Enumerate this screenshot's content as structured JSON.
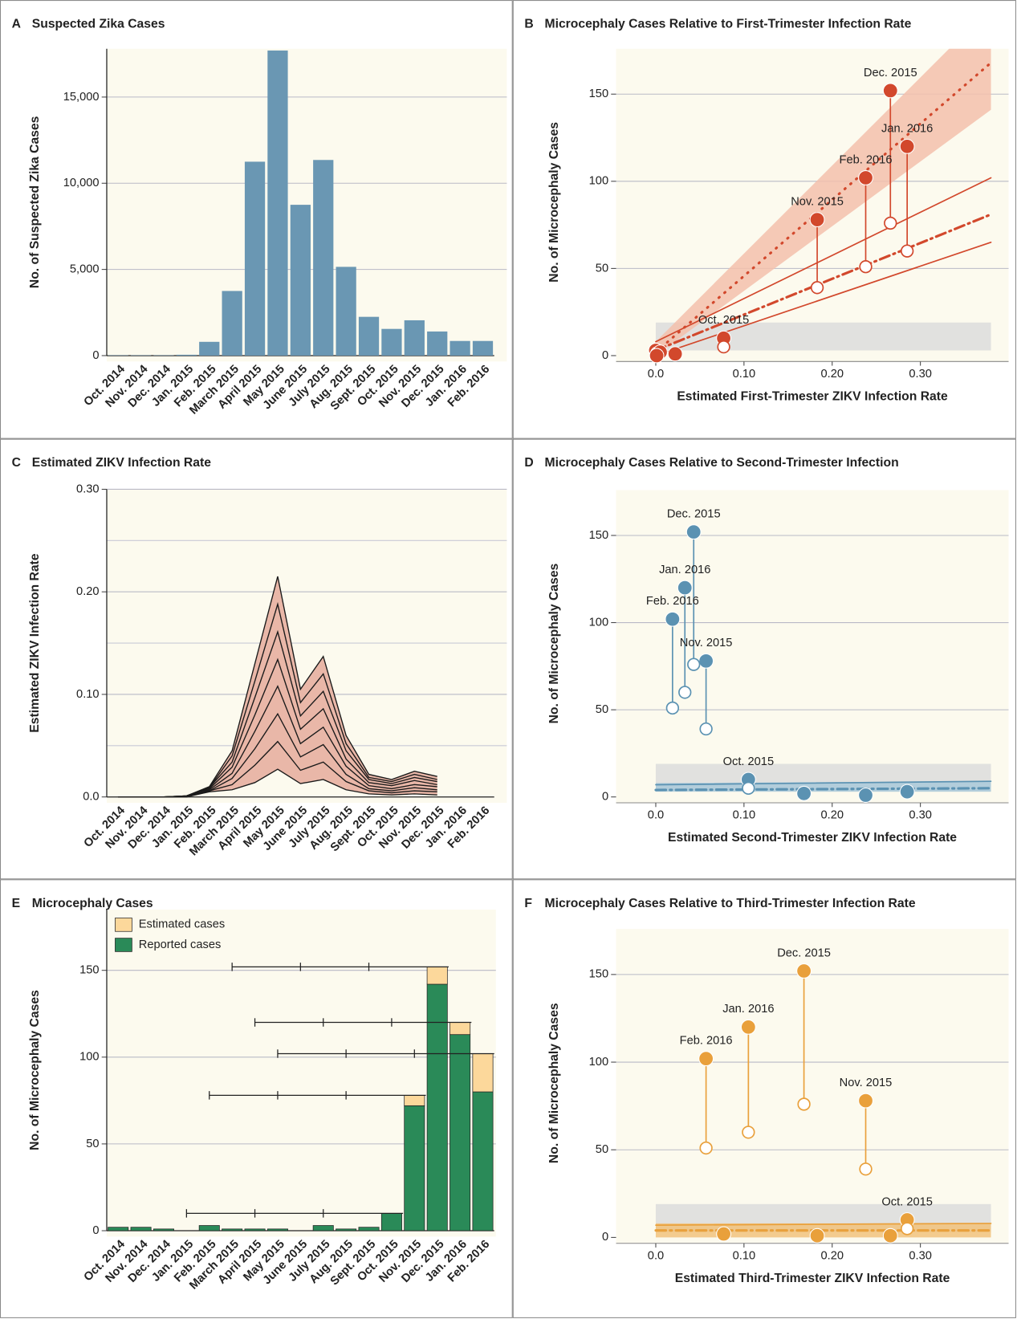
{
  "chart_data": [
    {
      "type": "bar",
      "panel": "A",
      "title": "Suspected Zika Cases",
      "y_label": "No. of Suspected Zika Cases",
      "categories": [
        "Oct. 2014",
        "Nov. 2014",
        "Dec. 2014",
        "Jan. 2015",
        "Feb. 2015",
        "March 2015",
        "April 2015",
        "May 2015",
        "June 2015",
        "July 2015",
        "Aug. 2015",
        "Sept. 2015",
        "Oct. 2015",
        "Nov. 2015",
        "Dec. 2015",
        "Jan. 2016",
        "Feb. 2016"
      ],
      "values": [
        20,
        20,
        20,
        50,
        800,
        3750,
        11250,
        17700,
        8750,
        11350,
        5150,
        2250,
        1550,
        2050,
        1400,
        850,
        850
      ],
      "color": "#6a97b3",
      "ylim": [
        0,
        17800
      ],
      "yticks": [
        0,
        {
          "value": 5000,
          "label": "5,000"
        },
        {
          "value": 10000,
          "label": "10,000"
        },
        {
          "value": 15000,
          "label": "15,000"
        }
      ],
      "grid": true
    },
    {
      "type": "scatter",
      "panel": "B",
      "title": "Microcephaly Cases Relative to First-Trimester Infection Rate",
      "y_label": "No. of Microcephaly Cases",
      "x_label": "Estimated First-Trimester ZIKV Infection Rate",
      "xlim": [
        -0.045,
        0.4
      ],
      "xticks": [
        {
          "value": 0,
          "label": "0.0"
        },
        {
          "value": 0.1,
          "label": "0.10"
        },
        {
          "value": 0.2,
          "label": "0.20"
        },
        {
          "value": 0.3,
          "label": "0.30"
        }
      ],
      "ylim": [
        0,
        176
      ],
      "yticks": [
        0,
        50,
        100,
        150
      ],
      "grid": true,
      "series": [
        {
          "color": "#d2482c",
          "x": [
            0.077,
            0.183,
            0.266,
            0.285,
            0.238,
            0,
            0.002,
            0.005,
            0.022,
            0.001
          ],
          "values": [
            10,
            78,
            152,
            120,
            102,
            3,
            1,
            2,
            1,
            0
          ],
          "labels": [
            "Oct. 2015",
            "Nov. 2015",
            "Dec. 2015",
            "Jan. 2016",
            "Feb. 2016",
            null,
            null,
            null,
            null,
            null
          ]
        },
        {
          "color": "#d2482c",
          "hollow": true,
          "x": [
            0.077,
            0.183,
            0.266,
            0.285,
            0.238
          ],
          "values": [
            5,
            39,
            76,
            60,
            51
          ]
        }
      ],
      "bands": [
        {
          "color": "#dcdcdc",
          "x": [
            0,
            0.38
          ],
          "lower": [
            3,
            3
          ],
          "upper": [
            19,
            19
          ]
        },
        {
          "color": "#f3c0ab",
          "x": [
            0,
            0.38
          ],
          "lower": [
            0,
            141
          ],
          "upper": [
            8,
            200
          ]
        }
      ],
      "fits": [
        {
          "color": "#d2482c",
          "style": "dot",
          "x": [
            0,
            0.38
          ],
          "values": [
            2,
            168
          ]
        },
        {
          "color": "#d2482c",
          "style": "solid",
          "x": [
            0,
            0.38
          ],
          "values": [
            8,
            102
          ]
        },
        {
          "color": "#d2482c",
          "style": "dashdot",
          "x": [
            0,
            0.38
          ],
          "values": [
            3,
            81
          ]
        },
        {
          "color": "#d2482c",
          "style": "solid",
          "x": [
            0,
            0.38
          ],
          "values": [
            0,
            65
          ]
        }
      ]
    },
    {
      "type": "area",
      "panel": "C",
      "title": "Estimated ZIKV Infection Rate",
      "y_label": "Estimated ZIKV Infection Rate",
      "categories": [
        "Oct. 2014",
        "Nov. 2014",
        "Dec. 2014",
        "Jan. 2015",
        "Feb. 2015",
        "March 2015",
        "April 2015",
        "May 2015",
        "June 2015",
        "July 2015",
        "Aug. 2015",
        "Sept. 2015",
        "Oct. 2015",
        "Nov. 2015",
        "Dec. 2015",
        "Jan. 2016",
        "Feb. 2016"
      ],
      "series": [
        {
          "values": [
            0,
            0,
            0,
            0,
            0.005,
            0.007,
            0.014,
            0.027,
            0.013,
            0.017,
            0.007,
            0.003,
            0.002,
            0.003,
            0.002,
            null,
            null
          ]
        },
        {
          "values": [
            0,
            0,
            0,
            0,
            0.006,
            0.012,
            0.031,
            0.054,
            0.026,
            0.034,
            0.015,
            0.006,
            0.004,
            0.006,
            0.005,
            null,
            null
          ]
        },
        {
          "values": [
            0,
            0,
            0,
            0,
            0.006,
            0.018,
            0.047,
            0.081,
            0.039,
            0.051,
            0.022,
            0.008,
            0.006,
            0.009,
            0.007,
            null,
            null
          ]
        },
        {
          "values": [
            0,
            0,
            0,
            0,
            0.007,
            0.023,
            0.064,
            0.108,
            0.052,
            0.068,
            0.03,
            0.011,
            0.008,
            0.012,
            0.01,
            null,
            null
          ]
        },
        {
          "values": [
            0,
            0,
            0,
            0.001,
            0.008,
            0.029,
            0.08,
            0.134,
            0.066,
            0.086,
            0.037,
            0.014,
            0.011,
            0.016,
            0.012,
            null,
            null
          ]
        },
        {
          "values": [
            0,
            0,
            0,
            0.001,
            0.009,
            0.034,
            0.097,
            0.161,
            0.079,
            0.103,
            0.045,
            0.017,
            0.013,
            0.019,
            0.015,
            null,
            null
          ]
        },
        {
          "values": [
            0,
            0,
            0,
            0.001,
            0.009,
            0.04,
            0.113,
            0.188,
            0.092,
            0.12,
            0.052,
            0.019,
            0.015,
            0.022,
            0.017,
            null,
            null
          ]
        },
        {
          "values": [
            0,
            0,
            0,
            0.001,
            0.01,
            0.045,
            0.13,
            0.215,
            0.105,
            0.137,
            0.06,
            0.022,
            0.017,
            0.025,
            0.02,
            null,
            null
          ]
        }
      ],
      "fill_color": "#e9b7a8",
      "line_color": "#1a1a1a",
      "ylim": [
        0,
        0.3
      ],
      "yticks": [
        {
          "value": 0,
          "label": "0.0"
        },
        {
          "value": 0.1,
          "label": "0.10"
        },
        {
          "value": 0.2,
          "label": "0.20"
        },
        {
          "value": 0.3,
          "label": "0.30"
        }
      ],
      "minor_yticks": [
        0.05,
        0.15,
        0.25
      ],
      "grid": true
    },
    {
      "type": "scatter",
      "panel": "D",
      "title": "Microcephaly Cases Relative to Second-Trimester Infection",
      "y_label": "No. of Microcephaly Cases",
      "x_label": "Estimated Second-Trimester ZIKV Infection Rate",
      "xlim": [
        -0.045,
        0.4
      ],
      "xticks": [
        {
          "value": 0,
          "label": "0.0"
        },
        {
          "value": 0.1,
          "label": "0.10"
        },
        {
          "value": 0.2,
          "label": "0.20"
        },
        {
          "value": 0.3,
          "label": "0.30"
        }
      ],
      "ylim": [
        0,
        176
      ],
      "yticks": [
        0,
        50,
        100,
        150
      ],
      "grid": true,
      "series": [
        {
          "color": "#5b92b2",
          "x": [
            0.105,
            0.057,
            0.043,
            0.033,
            0.019,
            0.168,
            0.238,
            0.285
          ],
          "values": [
            10,
            78,
            152,
            120,
            102,
            2,
            1,
            3
          ],
          "labels": [
            "Oct. 2015",
            "Nov. 2015",
            "Dec. 2015",
            "Jan. 2016",
            "Feb. 2016",
            null,
            null,
            null
          ]
        },
        {
          "color": "#5b92b2",
          "hollow": true,
          "x": [
            0.105,
            0.057,
            0.043,
            0.033,
            0.019
          ],
          "values": [
            5,
            39,
            76,
            60,
            51
          ]
        }
      ],
      "bands": [
        {
          "color": "#dcdcdc",
          "x": [
            0,
            0.38
          ],
          "lower": [
            3,
            3
          ],
          "upper": [
            19,
            19
          ]
        },
        {
          "color": "#a9c9da",
          "x": [
            0,
            0.38
          ],
          "lower": [
            3,
            3
          ],
          "upper": [
            8,
            9
          ]
        }
      ],
      "fits": [
        {
          "color": "#5b92b2",
          "style": "solid",
          "x": [
            0,
            0.38
          ],
          "values": [
            7,
            9
          ]
        },
        {
          "color": "#5b92b2",
          "style": "dashdot",
          "x": [
            0,
            0.38
          ],
          "values": [
            4,
            5
          ]
        }
      ]
    },
    {
      "type": "stacked_bar",
      "panel": "E",
      "title": "Microcephaly Cases",
      "y_label": "No. of Microcephaly Cases",
      "categories": [
        "Oct. 2014",
        "Nov. 2014",
        "Dec. 2014",
        "Jan. 2015",
        "Feb. 2015",
        "March 2015",
        "April 2015",
        "May 2015",
        "June 2015",
        "July 2015",
        "Aug. 2015",
        "Sept. 2015",
        "Oct. 2015",
        "Nov. 2015",
        "Dec. 2015",
        "Jan. 2016",
        "Feb. 2016"
      ],
      "series": [
        {
          "name": "Reported cases",
          "color": "#2a8a58",
          "values": [
            2,
            2,
            1,
            0,
            3,
            1,
            1,
            1,
            0,
            3,
            1,
            2,
            10,
            72,
            142,
            113,
            80
          ]
        },
        {
          "name": "Estimated cases",
          "color": "#fcd89b",
          "values": [
            0,
            0,
            0,
            0,
            0,
            0,
            0,
            0,
            0,
            0,
            0,
            0,
            0,
            6,
            10,
            7,
            22
          ]
        }
      ],
      "legend": "top-left",
      "windows": [
        {
          "value": 152,
          "x": [
            5,
            8,
            11,
            14.5
          ]
        },
        {
          "value": 120,
          "x": [
            6,
            9,
            12,
            15.5
          ]
        },
        {
          "value": 102,
          "x": [
            7,
            10,
            13,
            16.5
          ]
        },
        {
          "value": 78,
          "x": [
            4,
            7,
            10,
            13.5
          ]
        },
        {
          "value": 10,
          "x": [
            3,
            6,
            9,
            12.5
          ]
        }
      ],
      "ylim": [
        0,
        185
      ],
      "yticks": [
        0,
        50,
        100,
        150
      ],
      "grid": true
    },
    {
      "type": "scatter",
      "panel": "F",
      "title": "Microcephaly Cases Relative to Third-Trimester Infection Rate",
      "y_label": "No. of Microcephaly Cases",
      "x_label": "Estimated Third-Trimester ZIKV Infection Rate",
      "xlim": [
        -0.045,
        0.4
      ],
      "xticks": [
        {
          "value": 0,
          "label": "0.0"
        },
        {
          "value": 0.1,
          "label": "0.10"
        },
        {
          "value": 0.2,
          "label": "0.20"
        },
        {
          "value": 0.3,
          "label": "0.30"
        }
      ],
      "ylim": [
        0,
        176
      ],
      "yticks": [
        0,
        50,
        100,
        150
      ],
      "grid": true,
      "series": [
        {
          "color": "#e9a03b",
          "x": [
            0.285,
            0.238,
            0.168,
            0.105,
            0.057,
            0.077,
            0.183,
            0.266
          ],
          "values": [
            10,
            78,
            152,
            120,
            102,
            2,
            1,
            1
          ],
          "labels": [
            "Oct. 2015",
            "Nov. 2015",
            "Dec. 2015",
            "Jan. 2016",
            "Feb. 2016",
            null,
            null,
            null
          ]
        },
        {
          "color": "#e9a03b",
          "hollow": true,
          "x": [
            0.285,
            0.238,
            0.168,
            0.105,
            0.057
          ],
          "values": [
            5,
            39,
            76,
            60,
            51
          ]
        }
      ],
      "bands": [
        {
          "color": "#dcdcdc",
          "x": [
            0,
            0.38
          ],
          "lower": [
            3,
            3
          ],
          "upper": [
            19,
            19
          ]
        },
        {
          "color": "#f1c27d",
          "x": [
            0,
            0.38
          ],
          "lower": [
            0,
            0
          ],
          "upper": [
            8,
            8
          ]
        }
      ],
      "fits": [
        {
          "color": "#e9a03b",
          "style": "solid",
          "x": [
            0,
            0.38
          ],
          "values": [
            7,
            8
          ]
        },
        {
          "color": "#e9a03b",
          "style": "dashdot",
          "x": [
            0,
            0.38
          ],
          "values": [
            4,
            4
          ]
        }
      ]
    }
  ]
}
